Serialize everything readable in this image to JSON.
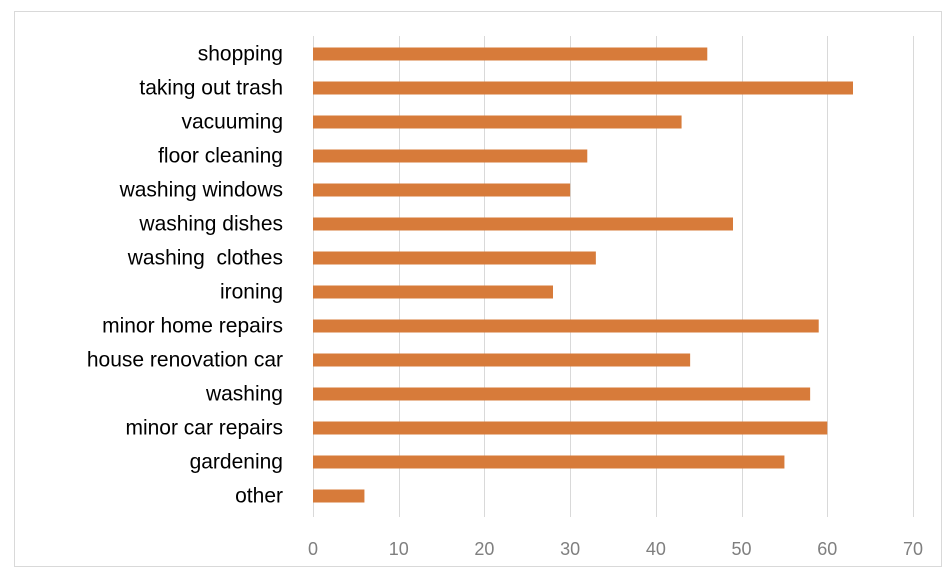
{
  "chart_data": {
    "type": "bar",
    "orientation": "horizontal",
    "categories": [
      "shopping",
      "taking out trash",
      "vacuuming",
      "floor cleaning",
      "washing windows",
      "washing dishes",
      "washing  clothes",
      "ironing",
      "minor home repairs",
      "house renovation car",
      "washing",
      "minor car repairs",
      "gardening",
      "other"
    ],
    "values": [
      46,
      63,
      43,
      32,
      30,
      49,
      33,
      28,
      59,
      44,
      58,
      60,
      55,
      6
    ],
    "xlim": [
      0,
      70
    ],
    "xticks": [
      0,
      10,
      20,
      30,
      40,
      50,
      60,
      70
    ],
    "title": "",
    "xlabel": "",
    "ylabel": "",
    "grid": "vertical",
    "legend": "none",
    "bar_color": "#D77B3A",
    "grid_color": "#D9D9D9",
    "tick_color": "#7F7F7F"
  }
}
